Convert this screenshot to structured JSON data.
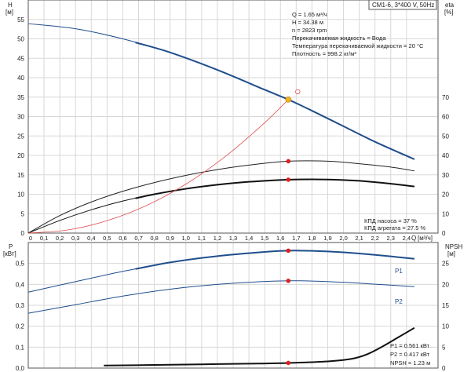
{
  "header_box": "CM1-6, 3*400 V, 50Hz",
  "chart_data": [
    {
      "type": "line",
      "panel": "upper",
      "ylabel": "H",
      "yunit": "[м]",
      "y2label": "eta",
      "y2unit": "[%]",
      "xlabel": "Q",
      "xunit": "[м³/ч]",
      "xlim": [
        0,
        2.6
      ],
      "ylim": [
        0,
        60
      ],
      "y2lim": [
        0,
        120
      ],
      "x_ticks": [
        "0",
        "0,1",
        "0,2",
        "0,3",
        "0,4",
        "0,5",
        "0,6",
        "0,7",
        "0,8",
        "0,9",
        "1,0",
        "1,1",
        "1,2",
        "1,3",
        "1,4",
        "1,5",
        "1,6",
        "1,7",
        "1,8",
        "1,9",
        "2,0",
        "2,1",
        "2,2",
        "2,3",
        "2,4"
      ],
      "y_ticks": [
        "0",
        "5",
        "10",
        "15",
        "20",
        "25",
        "30",
        "35",
        "40",
        "45",
        "50",
        "55"
      ],
      "y2_ticks": [
        "0",
        "10",
        "20",
        "30",
        "40",
        "50",
        "60",
        "70"
      ],
      "series": [
        {
          "role": "head",
          "color": "#1f4e8c",
          "axis": "left",
          "x": [
            0,
            0.3,
            0.6,
            0.9,
            1.2,
            1.5,
            1.65,
            1.8,
            2.0,
            2.2,
            2.45
          ],
          "y": [
            53.9,
            52.6,
            50.0,
            46.5,
            42.0,
            36.9,
            34.38,
            31.5,
            27.5,
            23.5,
            19.0
          ],
          "bold_from": 0.68
        },
        {
          "role": "eta-pump",
          "color": "#222222",
          "axis": "right",
          "x": [
            0,
            0.2,
            0.4,
            0.6,
            0.8,
            1.0,
            1.2,
            1.4,
            1.65,
            1.9,
            2.1,
            2.3,
            2.45
          ],
          "y": [
            0,
            9,
            16,
            21.5,
            26,
            29.7,
            32.7,
            35.0,
            37.0,
            37.0,
            35.7,
            34.0,
            32.0
          ],
          "bold_from": null
        },
        {
          "role": "eta-unit",
          "color": "#111111",
          "axis": "right",
          "x": [
            0,
            0.2,
            0.4,
            0.6,
            0.8,
            1.0,
            1.2,
            1.4,
            1.65,
            1.9,
            2.1,
            2.3,
            2.45
          ],
          "y": [
            0,
            6.5,
            12,
            16.5,
            20.0,
            22.8,
            24.9,
            26.4,
            27.5,
            27.6,
            26.9,
            25.4,
            24.0
          ],
          "bold_from": 0.68
        },
        {
          "role": "system",
          "color": "#e05050",
          "axis": "left",
          "x": [
            0,
            0.25,
            0.5,
            0.75,
            1.0,
            1.25,
            1.5,
            1.65
          ],
          "y": [
            0,
            0.8,
            3.2,
            7.1,
            12.6,
            19.7,
            28.4,
            34.38
          ],
          "bold_from": null
        }
      ],
      "operating_points": [
        {
          "x": 1.65,
          "y": 34.38,
          "axis": "left",
          "color": "#f0b020"
        },
        {
          "x": 1.65,
          "y": 37.0,
          "axis": "right",
          "color": "#e02020"
        },
        {
          "x": 1.65,
          "y": 27.5,
          "axis": "right",
          "color": "#e02020"
        }
      ],
      "hollow_marker": {
        "x": 1.71,
        "y": 36.4,
        "axis": "left",
        "color": "#e05050"
      }
    },
    {
      "type": "line",
      "panel": "lower",
      "ylabel": "P",
      "yunit": "[кВт]",
      "y2label": "NPSH",
      "y2unit": "[м]",
      "xlim": [
        0,
        2.6
      ],
      "ylim": [
        0,
        0.6
      ],
      "y2lim": [
        0,
        30
      ],
      "y_ticks": [
        "0,0",
        "0,1",
        "0,2",
        "0,3",
        "0,4",
        "0,5"
      ],
      "y2_ticks": [
        "0",
        "5",
        "10",
        "15",
        "20",
        "25"
      ],
      "series": [
        {
          "role": "P1",
          "name": "P1",
          "color": "#1f4e8c",
          "axis": "left",
          "x": [
            0,
            0.3,
            0.6,
            0.9,
            1.2,
            1.5,
            1.65,
            1.8,
            2.0,
            2.2,
            2.45
          ],
          "y": [
            0.363,
            0.413,
            0.462,
            0.505,
            0.535,
            0.555,
            0.561,
            0.56,
            0.553,
            0.541,
            0.522
          ],
          "bold_from": 0.68
        },
        {
          "role": "P2",
          "name": "P2",
          "color": "#1f4e8c",
          "axis": "left",
          "x": [
            0,
            0.3,
            0.6,
            0.9,
            1.2,
            1.5,
            1.65,
            1.8,
            2.0,
            2.2,
            2.45
          ],
          "y": [
            0.262,
            0.303,
            0.344,
            0.377,
            0.4,
            0.414,
            0.417,
            0.416,
            0.41,
            0.401,
            0.389
          ],
          "bold_from": null
        },
        {
          "role": "NPSH",
          "color": "#111111",
          "axis": "right",
          "x": [
            0.48,
            0.8,
            1.1,
            1.4,
            1.65,
            1.9,
            2.05,
            2.15,
            2.25,
            2.35,
            2.45
          ],
          "y": [
            0.6,
            0.75,
            0.9,
            1.05,
            1.23,
            1.6,
            2.2,
            3.3,
            5.2,
            7.4,
            9.6
          ],
          "bold_from": 0.48
        }
      ],
      "operating_points": [
        {
          "x": 1.65,
          "y": 0.561,
          "axis": "left",
          "color": "#e02020"
        },
        {
          "x": 1.65,
          "y": 0.417,
          "axis": "left",
          "color": "#e02020"
        },
        {
          "x": 1.65,
          "y": 1.23,
          "axis": "right",
          "color": "#e02020"
        }
      ]
    }
  ],
  "info_lines": [
    "Q = 1.65 м³/ч",
    "H = 34.38 м",
    "n = 2823 rpm",
    "Перекачиваемая жидкость = Вода",
    "Температура перекачиваемой жидкости = 20 °C",
    "Плотность = 998.2 кг/м³"
  ],
  "eff_lines": [
    "КПД насоса = 37 %",
    "КПД агрегата = 27.5 %"
  ],
  "power_lines": [
    "P1 = 0.561 кВт",
    "P2 = 0.417 кВт",
    "NPSH = 1.23 м"
  ]
}
